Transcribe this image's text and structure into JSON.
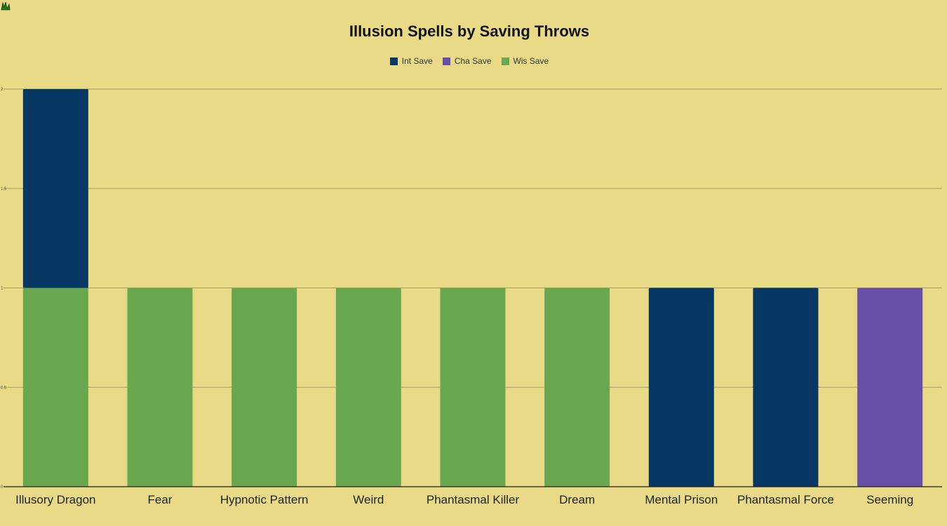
{
  "chart_data": {
    "type": "bar",
    "stacked": true,
    "title": "Illusion Spells by Saving Throws",
    "categories": [
      "Illusory Dragon",
      "Fear",
      "Hypnotic Pattern",
      "Weird",
      "Phantasmal Killer",
      "Dream",
      "Mental Prison",
      "Phantasmal Force",
      "Seeming"
    ],
    "series": [
      {
        "name": "Wis Save",
        "color": "#6aa84f",
        "values": [
          1,
          1,
          1,
          1,
          1,
          1,
          0,
          0,
          0
        ]
      },
      {
        "name": "Int Save",
        "color": "#073763",
        "values": [
          1,
          0,
          0,
          0,
          0,
          0,
          1,
          1,
          0
        ]
      },
      {
        "name": "Cha Save",
        "color": "#674ea7",
        "values": [
          0,
          0,
          0,
          0,
          0,
          0,
          0,
          0,
          1
        ]
      }
    ],
    "legend": {
      "position": "top",
      "items": [
        {
          "name": "Int Save",
          "color": "#073763"
        },
        {
          "name": "Cha Save",
          "color": "#674ea7"
        },
        {
          "name": "Wis Save",
          "color": "#6aa84f"
        }
      ]
    },
    "ylim": [
      0,
      2
    ],
    "yticks": [
      "0",
      "0.5",
      "1",
      "1.5",
      "2"
    ],
    "grid": true,
    "background": "#e8da86"
  }
}
